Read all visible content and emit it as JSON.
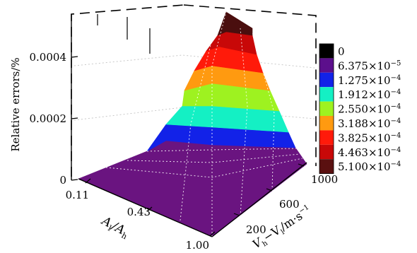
{
  "chart_data": {
    "type": "surface3d",
    "zlabel": "Relative errors/%",
    "xlabel_prefix": "A",
    "xlabel_sub1": "l",
    "xlabel_mid": "/A",
    "xlabel_sub2": "h",
    "ylabel_main": "V",
    "ylabel_sub1": "h",
    "ylabel_dash": "−V",
    "ylabel_sub2": "l",
    "ylabel_unit": "/m·s",
    "ylabel_exp": "−1",
    "x_ticks": [
      "0.11",
      "0.43",
      "1.00"
    ],
    "x_values": [
      0.11,
      0.43,
      1.0
    ],
    "y_ticks": [
      "200",
      "600",
      "1000"
    ],
    "y_values": [
      200,
      600,
      1000
    ],
    "z_ticks": [
      "0",
      "0.0002",
      "0.0004"
    ],
    "z_values": [
      0,
      0.0002,
      0.0004
    ],
    "z_range": [
      0,
      0.00051
    ],
    "colorbar": {
      "levels": [
        {
          "mant": "0",
          "exp": "",
          "color": "#000000"
        },
        {
          "mant": "6.375×10",
          "exp": "−5",
          "color": "#5c0f8c"
        },
        {
          "mant": "1.275×10",
          "exp": "−4",
          "color": "#1222e8"
        },
        {
          "mant": "1.912×10",
          "exp": "−4",
          "color": "#14f0c4"
        },
        {
          "mant": "2.550×10",
          "exp": "−4",
          "color": "#9ef220"
        },
        {
          "mant": "3.188×10",
          "exp": "−4",
          "color": "#ff9a10"
        },
        {
          "mant": "3.825×10",
          "exp": "−4",
          "color": "#ff1a0a"
        },
        {
          "mant": "4.463×10",
          "exp": "−4",
          "color": "#c80808"
        },
        {
          "mant": "5.100×10",
          "exp": "−4",
          "color": "#5a1010"
        }
      ]
    },
    "surface_bands": [
      {
        "level": "6.375×10−5",
        "color": "#6a1480"
      },
      {
        "level": "1.275×10−4",
        "color": "#1222e8"
      },
      {
        "level": "1.912×10−4",
        "color": "#14f0c4"
      },
      {
        "level": "2.550×10−4",
        "color": "#9ef220"
      },
      {
        "level": "3.188×10−4",
        "color": "#ff9a10"
      },
      {
        "level": "3.825×10−4",
        "color": "#ff1a0a"
      },
      {
        "level": "4.463×10−4",
        "color": "#c80808"
      },
      {
        "level": "5.100×10−4",
        "color": "#4a0e0e"
      }
    ],
    "grid": true
  }
}
